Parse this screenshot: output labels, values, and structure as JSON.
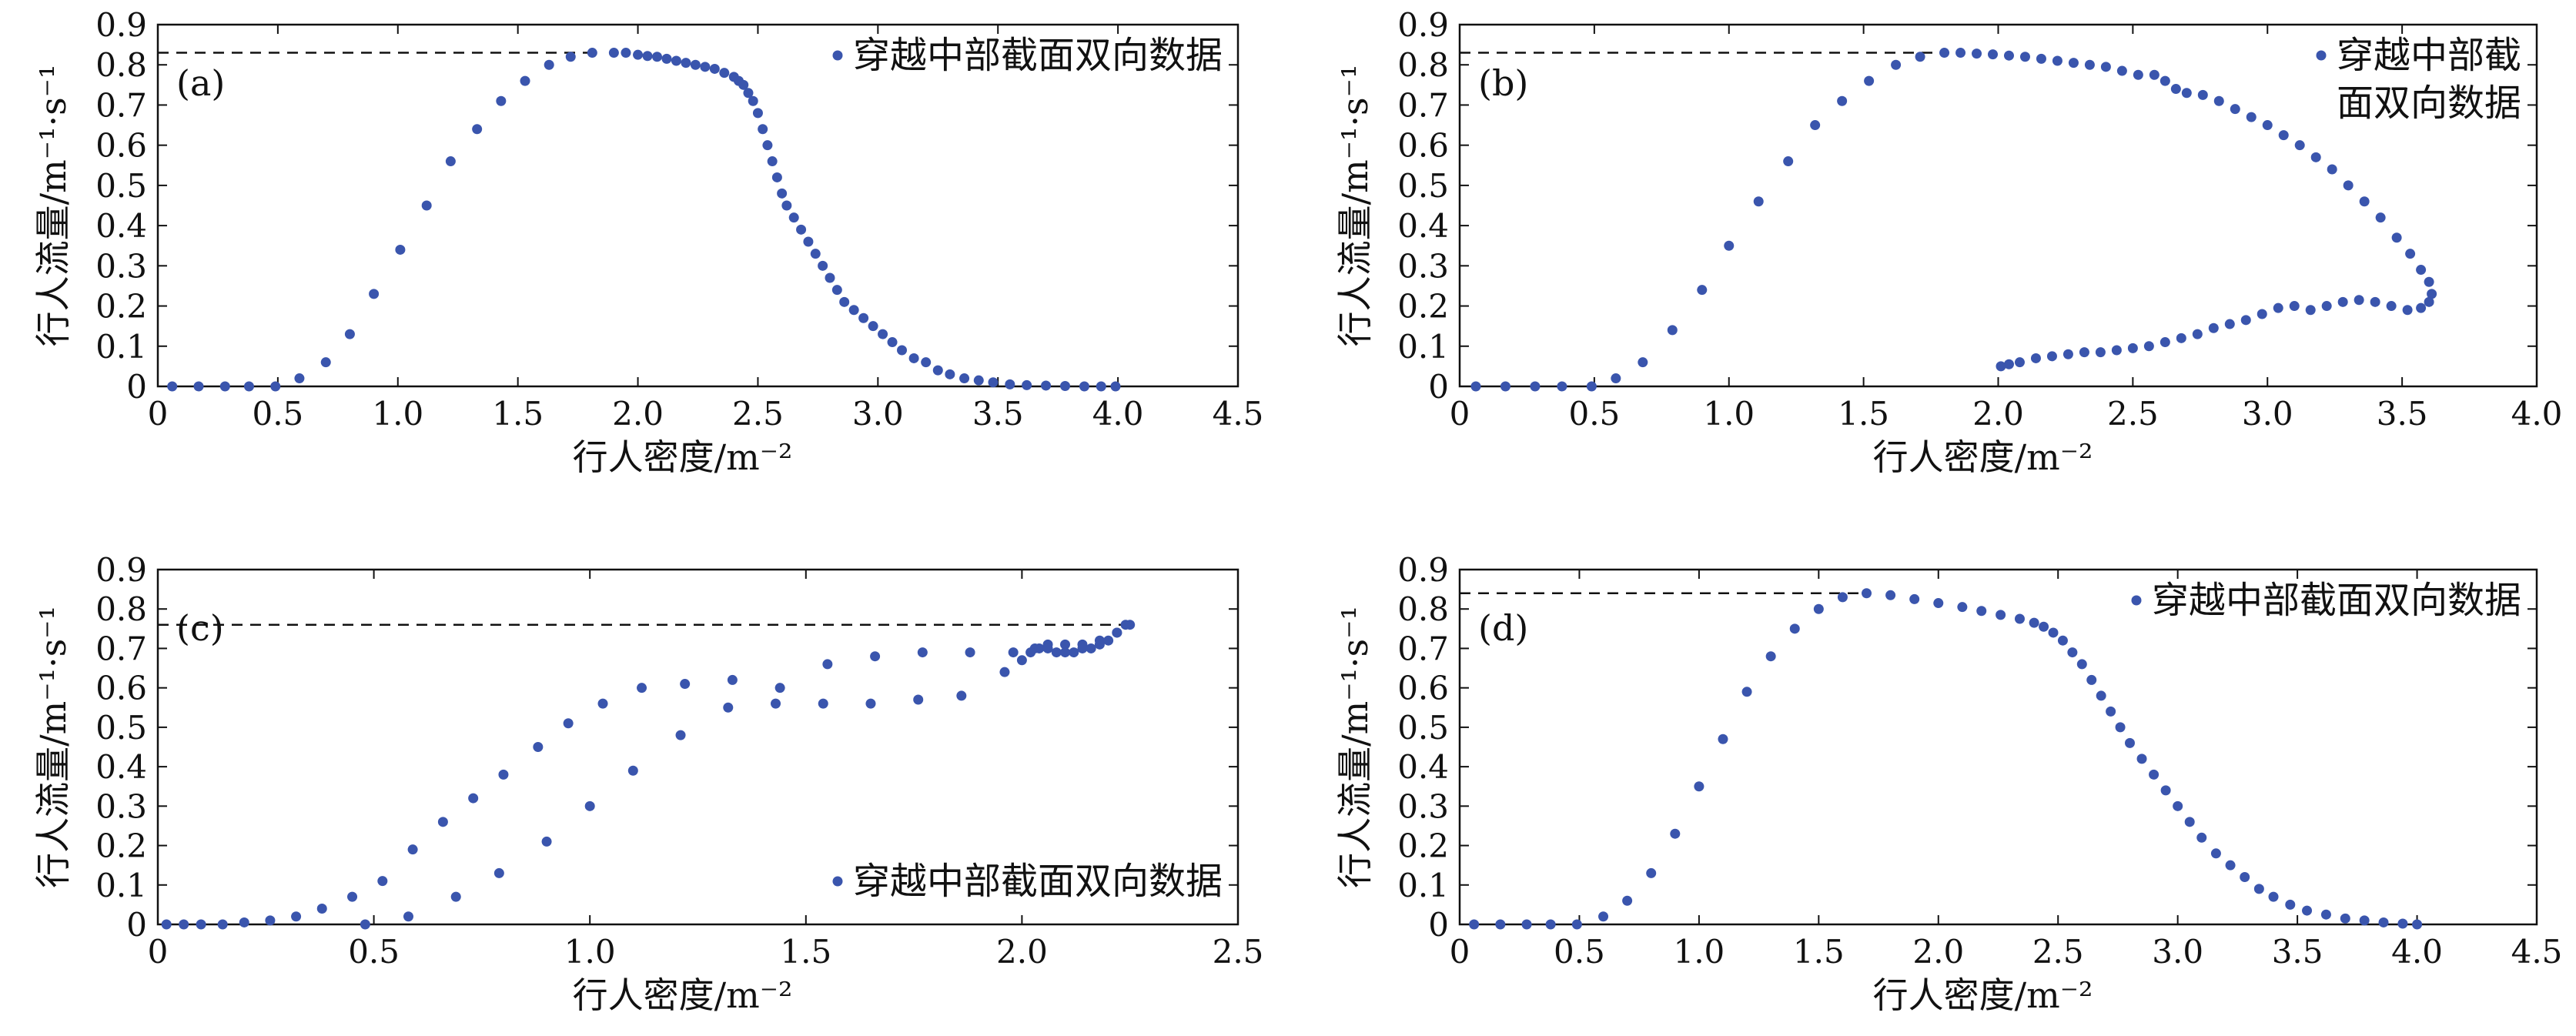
{
  "chart_data": [
    {
      "type": "scatter",
      "panel_label": "(a)",
      "xlabel": "行人密度/m⁻²",
      "ylabel": "行人流量/m⁻¹·s⁻¹",
      "xlim": [
        0,
        4.5
      ],
      "ylim": [
        0,
        0.9
      ],
      "xticks": [
        "0",
        "0.5",
        "1.0",
        "1.5",
        "2.0",
        "2.5",
        "3.0",
        "3.5",
        "4.0",
        "4.5"
      ],
      "yticks": [
        "0",
        "0.1",
        "0.2",
        "0.3",
        "0.4",
        "0.5",
        "0.6",
        "0.7",
        "0.8",
        "0.9"
      ],
      "legend": "穿越中部截面双向数据",
      "legend_position": "top-right",
      "marker_color": "#3a55ad",
      "reference_line_y": 0.83,
      "series": [
        {
          "name": "穿越中部截面双向数据",
          "x": [
            0.06,
            0.17,
            0.28,
            0.38,
            0.49,
            0.59,
            0.7,
            0.8,
            0.9,
            1.01,
            1.12,
            1.22,
            1.33,
            1.43,
            1.53,
            1.63,
            1.72,
            1.81,
            1.9,
            1.95,
            2.0,
            2.04,
            2.08,
            2.12,
            2.16,
            2.2,
            2.24,
            2.28,
            2.32,
            2.36,
            2.4,
            2.42,
            2.44,
            2.46,
            2.48,
            2.5,
            2.52,
            2.54,
            2.56,
            2.58,
            2.6,
            2.62,
            2.65,
            2.68,
            2.71,
            2.74,
            2.77,
            2.8,
            2.83,
            2.86,
            2.9,
            2.94,
            2.98,
            3.02,
            3.06,
            3.1,
            3.15,
            3.2,
            3.25,
            3.3,
            3.36,
            3.42,
            3.48,
            3.55,
            3.62,
            3.7,
            3.78,
            3.86,
            3.93,
            3.99
          ],
          "y": [
            0.0,
            0.0,
            0.0,
            0.0,
            0.0,
            0.02,
            0.06,
            0.13,
            0.23,
            0.34,
            0.45,
            0.56,
            0.64,
            0.71,
            0.76,
            0.8,
            0.82,
            0.83,
            0.83,
            0.83,
            0.825,
            0.822,
            0.82,
            0.815,
            0.81,
            0.805,
            0.8,
            0.795,
            0.79,
            0.78,
            0.77,
            0.76,
            0.75,
            0.73,
            0.71,
            0.68,
            0.64,
            0.6,
            0.56,
            0.52,
            0.48,
            0.45,
            0.42,
            0.39,
            0.36,
            0.33,
            0.3,
            0.27,
            0.24,
            0.21,
            0.19,
            0.17,
            0.15,
            0.13,
            0.11,
            0.09,
            0.07,
            0.06,
            0.04,
            0.03,
            0.02,
            0.015,
            0.01,
            0.005,
            0.003,
            0.002,
            0.001,
            0.0,
            0.0,
            0.0
          ]
        }
      ]
    },
    {
      "type": "scatter",
      "panel_label": "(b)",
      "xlabel": "行人密度/m⁻²",
      "ylabel": "行人流量/m⁻¹·s⁻¹",
      "xlim": [
        0,
        4.0
      ],
      "ylim": [
        0,
        0.9
      ],
      "xticks": [
        "0",
        "0.5",
        "1.0",
        "1.5",
        "2.0",
        "2.5",
        "3.0",
        "3.5",
        "4.0"
      ],
      "yticks": [
        "0",
        "0.1",
        "0.2",
        "0.3",
        "0.4",
        "0.5",
        "0.6",
        "0.7",
        "0.8",
        "0.9"
      ],
      "legend": "穿越中部截面双向数据",
      "legend_lines": [
        "穿越中部截",
        "面双向数据"
      ],
      "legend_position": "top-right",
      "marker_color": "#3a55ad",
      "reference_line_y": 0.83,
      "series": [
        {
          "name": "穿越中部截面双向数据",
          "x": [
            0.06,
            0.17,
            0.28,
            0.38,
            0.49,
            0.58,
            0.68,
            0.79,
            0.9,
            1.0,
            1.11,
            1.22,
            1.32,
            1.42,
            1.52,
            1.62,
            1.71,
            1.8,
            1.86,
            1.92,
            1.98,
            2.04,
            2.1,
            2.16,
            2.22,
            2.28,
            2.34,
            2.4,
            2.46,
            2.52,
            2.58,
            2.62,
            2.66,
            2.7,
            2.76,
            2.82,
            2.88,
            2.94,
            3.0,
            3.06,
            3.12,
            3.18,
            3.24,
            3.3,
            3.36,
            3.42,
            3.48,
            3.53,
            3.57,
            3.6,
            3.61,
            3.6,
            3.57,
            3.52,
            3.46,
            3.4,
            3.34,
            3.28,
            3.22,
            3.16,
            3.1,
            3.04,
            2.98,
            2.92,
            2.86,
            2.8,
            2.74,
            2.68,
            2.62,
            2.56,
            2.5,
            2.44,
            2.38,
            2.32,
            2.26,
            2.2,
            2.14,
            2.08,
            2.04,
            2.01
          ],
          "y": [
            0.0,
            0.0,
            0.0,
            0.0,
            0.0,
            0.02,
            0.06,
            0.14,
            0.24,
            0.35,
            0.46,
            0.56,
            0.65,
            0.71,
            0.76,
            0.8,
            0.82,
            0.83,
            0.83,
            0.828,
            0.826,
            0.823,
            0.82,
            0.815,
            0.81,
            0.805,
            0.8,
            0.795,
            0.785,
            0.775,
            0.775,
            0.76,
            0.74,
            0.73,
            0.725,
            0.71,
            0.69,
            0.67,
            0.65,
            0.625,
            0.6,
            0.57,
            0.54,
            0.5,
            0.46,
            0.42,
            0.37,
            0.33,
            0.29,
            0.26,
            0.23,
            0.21,
            0.195,
            0.19,
            0.2,
            0.21,
            0.215,
            0.21,
            0.2,
            0.19,
            0.2,
            0.195,
            0.18,
            0.165,
            0.155,
            0.145,
            0.13,
            0.12,
            0.11,
            0.1,
            0.095,
            0.09,
            0.085,
            0.085,
            0.08,
            0.075,
            0.07,
            0.06,
            0.055,
            0.05
          ]
        }
      ]
    },
    {
      "type": "scatter",
      "panel_label": "(c)",
      "xlabel": "行人密度/m⁻²",
      "ylabel": "行人流量/m⁻¹·s⁻¹",
      "xlim": [
        0,
        2.5
      ],
      "ylim": [
        0,
        0.9
      ],
      "xticks": [
        "0",
        "0.5",
        "1.0",
        "1.5",
        "2.0",
        "2.5"
      ],
      "yticks": [
        "0",
        "0.1",
        "0.2",
        "0.3",
        "0.4",
        "0.5",
        "0.6",
        "0.7",
        "0.8",
        "0.9"
      ],
      "legend": "穿越中部截面双向数据",
      "legend_position": "bottom-right",
      "marker_color": "#3a55ad",
      "reference_line_y": 0.76,
      "series": [
        {
          "name": "穿越中部截面双向数据",
          "x": [
            0.02,
            0.06,
            0.1,
            0.15,
            0.2,
            0.26,
            0.32,
            0.38,
            0.45,
            0.52,
            0.59,
            0.66,
            0.73,
            0.8,
            0.88,
            0.95,
            1.03,
            1.12,
            1.22,
            1.33,
            1.44,
            1.55,
            1.66,
            1.77,
            1.88,
            1.98,
            2.03,
            2.06,
            2.1,
            2.14,
            2.18,
            2.22,
            2.25,
            0.48,
            0.58,
            0.69,
            0.79,
            0.9,
            1.0,
            1.1,
            1.21,
            1.32,
            1.43,
            1.54,
            1.65,
            1.76,
            1.86,
            1.96,
            2.0,
            2.02,
            2.04,
            2.06,
            2.08,
            2.1,
            2.12,
            2.14,
            2.16,
            2.18,
            2.2,
            2.22,
            2.24
          ],
          "y": [
            0.0,
            0.0,
            0.0,
            0.0,
            0.005,
            0.01,
            0.02,
            0.04,
            0.07,
            0.11,
            0.19,
            0.26,
            0.32,
            0.38,
            0.45,
            0.51,
            0.56,
            0.6,
            0.61,
            0.62,
            0.6,
            0.66,
            0.68,
            0.69,
            0.69,
            0.69,
            0.7,
            0.71,
            0.71,
            0.71,
            0.72,
            0.74,
            0.76,
            0.0,
            0.02,
            0.07,
            0.13,
            0.21,
            0.3,
            0.39,
            0.48,
            0.55,
            0.56,
            0.56,
            0.56,
            0.57,
            0.58,
            0.64,
            0.67,
            0.69,
            0.7,
            0.7,
            0.69,
            0.69,
            0.69,
            0.7,
            0.7,
            0.71,
            0.72,
            0.74,
            0.76
          ]
        }
      ]
    },
    {
      "type": "scatter",
      "panel_label": "(d)",
      "xlabel": "行人密度/m⁻²",
      "ylabel": "行人流量/m⁻¹·s⁻¹",
      "xlim": [
        0,
        4.5
      ],
      "ylim": [
        0,
        0.9
      ],
      "xticks": [
        "0",
        "0.5",
        "1.0",
        "1.5",
        "2.0",
        "2.5",
        "3.0",
        "3.5",
        "4.0",
        "4.5"
      ],
      "yticks": [
        "0",
        "0.1",
        "0.2",
        "0.3",
        "0.4",
        "0.5",
        "0.6",
        "0.7",
        "0.8",
        "0.9"
      ],
      "legend": "穿越中部截面双向数据",
      "legend_position": "top-right",
      "marker_color": "#3a55ad",
      "reference_line_y": 0.84,
      "series": [
        {
          "name": "穿越中部截面双向数据",
          "x": [
            0.06,
            0.17,
            0.28,
            0.38,
            0.49,
            0.6,
            0.7,
            0.8,
            0.9,
            1.0,
            1.1,
            1.2,
            1.3,
            1.4,
            1.5,
            1.6,
            1.7,
            1.8,
            1.9,
            2.0,
            2.1,
            2.18,
            2.26,
            2.34,
            2.4,
            2.44,
            2.48,
            2.52,
            2.56,
            2.6,
            2.64,
            2.68,
            2.72,
            2.76,
            2.8,
            2.85,
            2.9,
            2.95,
            3.0,
            3.05,
            3.1,
            3.16,
            3.22,
            3.28,
            3.34,
            3.4,
            3.47,
            3.54,
            3.62,
            3.7,
            3.78,
            3.86,
            3.94,
            4.0
          ],
          "y": [
            0.0,
            0.0,
            0.0,
            0.0,
            0.0,
            0.02,
            0.06,
            0.13,
            0.23,
            0.35,
            0.47,
            0.59,
            0.68,
            0.75,
            0.8,
            0.83,
            0.84,
            0.835,
            0.825,
            0.815,
            0.805,
            0.795,
            0.785,
            0.775,
            0.765,
            0.755,
            0.74,
            0.72,
            0.69,
            0.66,
            0.62,
            0.58,
            0.54,
            0.5,
            0.46,
            0.42,
            0.38,
            0.34,
            0.3,
            0.26,
            0.22,
            0.18,
            0.15,
            0.12,
            0.09,
            0.07,
            0.05,
            0.035,
            0.025,
            0.015,
            0.01,
            0.005,
            0.002,
            0.0
          ]
        }
      ]
    }
  ]
}
